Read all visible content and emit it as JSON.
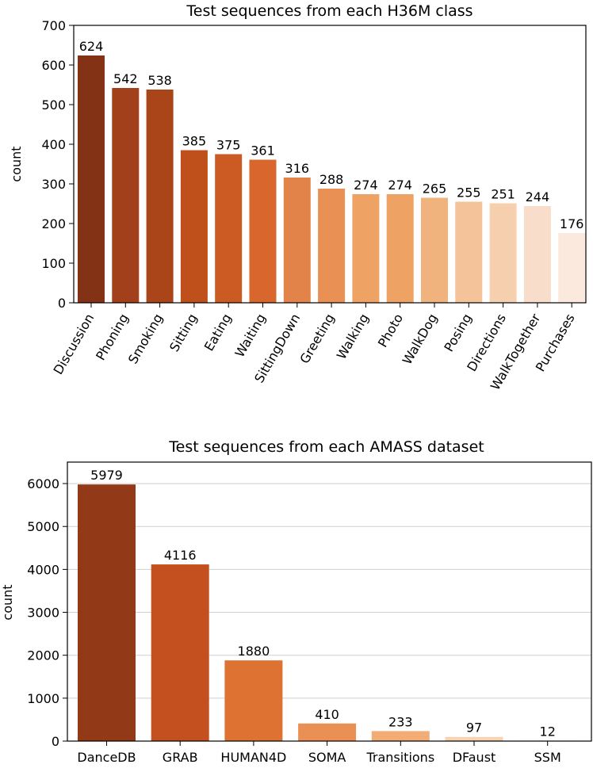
{
  "chart_data": [
    {
      "type": "bar",
      "title": "Test sequences from each H36M class",
      "xlabel": "",
      "ylabel": "count",
      "ylim": [
        0,
        700
      ],
      "yticks": [
        0,
        100,
        200,
        300,
        400,
        500,
        600,
        700
      ],
      "grid": false,
      "categories": [
        "Discussion",
        "Phoning",
        "Smoking",
        "Sitting",
        "Eating",
        "Waiting",
        "SittingDown",
        "Greeting",
        "Walking",
        "Photo",
        "WalkDog",
        "Posing",
        "Directions",
        "WalkTogether",
        "Purchases"
      ],
      "values": [
        624,
        542,
        538,
        385,
        375,
        361,
        316,
        288,
        274,
        274,
        265,
        255,
        251,
        244,
        176
      ],
      "data_labels": [
        "624",
        "542",
        "538",
        "385",
        "375",
        "361",
        "316",
        "288",
        "274",
        "274",
        "265",
        "255",
        "251",
        "244",
        "176"
      ],
      "colors": [
        "#843215",
        "#a1401a",
        "#a94519",
        "#bf501c",
        "#cb5a23",
        "#d8662d",
        "#e2834a",
        "#e99155",
        "#eea264",
        "#eea264",
        "#f1b37e",
        "#f4c39a",
        "#f6d0ae",
        "#f8deca",
        "#fae9dc"
      ]
    },
    {
      "type": "bar",
      "title": "Test sequences from each AMASS dataset",
      "xlabel": "",
      "ylabel": "count",
      "ylim": [
        0,
        6500
      ],
      "yticks": [
        0,
        1000,
        2000,
        3000,
        4000,
        5000,
        6000
      ],
      "grid": true,
      "categories": [
        "DanceDB",
        "GRAB",
        "HUMAN4D",
        "SOMA",
        "Transitions",
        "DFaust",
        "SSM"
      ],
      "values": [
        5979,
        4116,
        1880,
        410,
        233,
        97,
        12
      ],
      "data_labels": [
        "5979",
        "4116",
        "1880",
        "410",
        "233",
        "97",
        "12"
      ],
      "colors": [
        "#923a17",
        "#c4501f",
        "#dd7233",
        "#ea9055",
        "#f2ac76",
        "#f5d3b3",
        "#fcefe3"
      ]
    }
  ]
}
